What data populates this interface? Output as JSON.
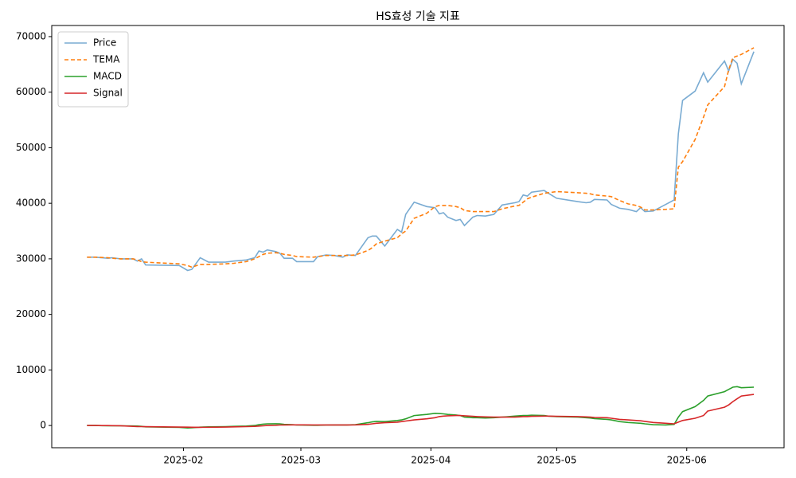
{
  "chart_data": {
    "type": "line",
    "title": "HS효성 기술 지표",
    "x": [
      9,
      11,
      14,
      15,
      17,
      20,
      21,
      22,
      23,
      31,
      33,
      34,
      36,
      38,
      42,
      44,
      47,
      49,
      50,
      51,
      52,
      54,
      55,
      56,
      58,
      59,
      63,
      64,
      66,
      68,
      70,
      71,
      73,
      76,
      77,
      78,
      80,
      83,
      84,
      85,
      87,
      90,
      92,
      93,
      94,
      95,
      97,
      98,
      99,
      101,
      102,
      104,
      106,
      108,
      111,
      112,
      113,
      114,
      115,
      118,
      119,
      121,
      126,
      128,
      129,
      130,
      133,
      134,
      136,
      138,
      140,
      141,
      142,
      144,
      147,
      149,
      150,
      151,
      154,
      156,
      157,
      161,
      162,
      163,
      164,
      165,
      168
    ],
    "xlim": [
      0.6,
      175.2
    ],
    "xticks": [
      {
        "value": 32,
        "label": "2025-02"
      },
      {
        "value": 60,
        "label": "2025-03"
      },
      {
        "value": 91,
        "label": "2025-04"
      },
      {
        "value": 121,
        "label": "2025-05"
      },
      {
        "value": 152,
        "label": "2025-06"
      }
    ],
    "ylim": [
      -4000,
      72000
    ],
    "yticks": [
      0,
      10000,
      20000,
      30000,
      40000,
      50000,
      60000,
      70000
    ],
    "legend": "upper left",
    "series": [
      {
        "name": "Price",
        "color": "#79abd2",
        "style": "solid",
        "values": [
          30300,
          30300,
          30100,
          30200,
          30000,
          30000,
          29600,
          30000,
          28900,
          28800,
          27900,
          28100,
          30200,
          29400,
          29400,
          29600,
          29800,
          30200,
          31400,
          31200,
          31600,
          31300,
          31000,
          30100,
          30100,
          29500,
          29500,
          30400,
          30700,
          30600,
          30300,
          30700,
          30600,
          33800,
          34100,
          34100,
          32300,
          35300,
          34800,
          38000,
          40200,
          39400,
          39200,
          38100,
          38300,
          37500,
          36900,
          37100,
          36000,
          37500,
          37800,
          37700,
          38000,
          39700,
          40100,
          40300,
          41500,
          41300,
          42000,
          42300,
          41800,
          40900,
          40300,
          40100,
          40200,
          40700,
          40600,
          39800,
          39100,
          38900,
          38500,
          39200,
          38500,
          38600,
          39800,
          40600,
          52500,
          58500,
          60200,
          63500,
          61800,
          65600,
          63800,
          65900,
          65200,
          61500,
          67300
        ]
      },
      {
        "name": "TEMA",
        "color": "#ff7f0e",
        "style": "dashed",
        "values": [
          30300,
          30300,
          30200,
          30100,
          30000,
          30000,
          29800,
          29500,
          29400,
          29100,
          28800,
          28500,
          29000,
          29000,
          29100,
          29200,
          29500,
          30000,
          30400,
          30800,
          31000,
          31100,
          31000,
          30800,
          30600,
          30400,
          30300,
          30400,
          30600,
          30600,
          30600,
          30600,
          30700,
          31500,
          32000,
          32700,
          33200,
          33800,
          34500,
          35000,
          37300,
          38200,
          39400,
          39600,
          39600,
          39600,
          39400,
          39200,
          38700,
          38500,
          38500,
          38500,
          38500,
          39000,
          39500,
          39600,
          40200,
          40800,
          41100,
          41800,
          41900,
          42100,
          41900,
          41800,
          41700,
          41500,
          41300,
          41200,
          40500,
          39900,
          39600,
          39300,
          38800,
          38800,
          38900,
          39000,
          46500,
          47500,
          51500,
          55500,
          57700,
          61000,
          64000,
          66200,
          66500,
          66800,
          68000
        ]
      },
      {
        "name": "MACD",
        "color": "#2ca02c",
        "style": "solid",
        "values": [
          0,
          0,
          -50,
          -50,
          -50,
          -80,
          -100,
          -150,
          -250,
          -350,
          -450,
          -400,
          -300,
          -250,
          -200,
          -150,
          -100,
          0,
          150,
          250,
          300,
          320,
          300,
          200,
          150,
          100,
          50,
          50,
          80,
          100,
          100,
          100,
          150,
          500,
          650,
          750,
          700,
          900,
          1000,
          1200,
          1800,
          2000,
          2200,
          2150,
          2100,
          2000,
          1900,
          1800,
          1500,
          1400,
          1400,
          1350,
          1400,
          1500,
          1700,
          1750,
          1800,
          1800,
          1850,
          1800,
          1700,
          1600,
          1500,
          1400,
          1350,
          1250,
          1100,
          1000,
          700,
          550,
          450,
          400,
          300,
          150,
          100,
          200,
          1500,
          2500,
          3400,
          4500,
          5300,
          6100,
          6500,
          6900,
          7000,
          6800,
          6900
        ]
      },
      {
        "name": "Signal",
        "color": "#d62728",
        "style": "solid",
        "values": [
          0,
          0,
          -20,
          -30,
          -40,
          -150,
          -180,
          -200,
          -220,
          -280,
          -300,
          -320,
          -330,
          -320,
          -280,
          -250,
          -200,
          -150,
          -100,
          -50,
          0,
          50,
          80,
          100,
          120,
          120,
          100,
          100,
          100,
          100,
          100,
          100,
          110,
          200,
          300,
          400,
          500,
          600,
          700,
          800,
          1000,
          1200,
          1400,
          1600,
          1700,
          1750,
          1800,
          1800,
          1750,
          1650,
          1600,
          1550,
          1500,
          1500,
          1500,
          1550,
          1600,
          1600,
          1650,
          1700,
          1700,
          1650,
          1600,
          1550,
          1500,
          1450,
          1400,
          1300,
          1100,
          1000,
          900,
          850,
          750,
          550,
          400,
          300,
          600,
          900,
          1300,
          1800,
          2600,
          3300,
          3700,
          4300,
          4800,
          5300,
          5600
        ]
      }
    ]
  }
}
